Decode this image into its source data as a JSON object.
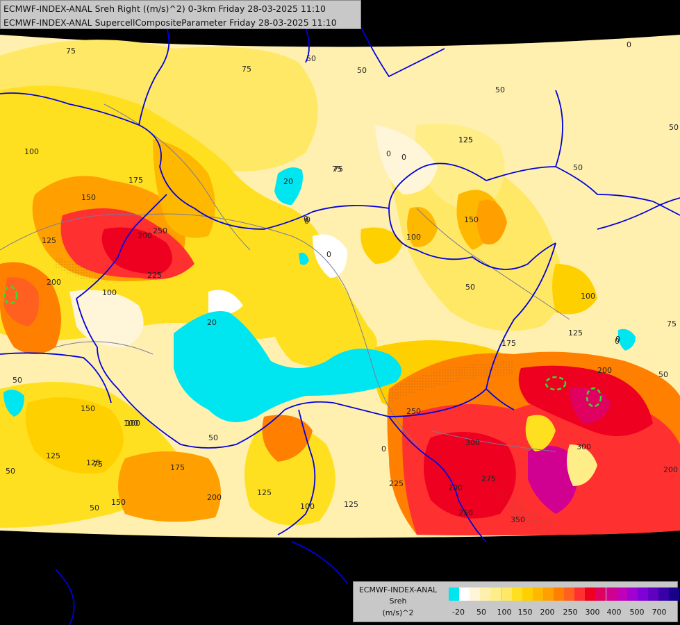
{
  "header": {
    "line1": "ECMWF-INDEX-ANAL Sreh Right ((m/s)^2) 0-3km Friday 28-03-2025 11:10",
    "line2": "ECMWF-INDEX-ANAL SupercellCompositeParameter Friday 28-03-2025 11:10"
  },
  "legend": {
    "line1": "ECMWF-INDEX-ANAL",
    "line2": "Sreh",
    "line3": "(m/s)^2",
    "colors": [
      "#00e6f0",
      "#ffffff",
      "#fff5d8",
      "#fff0b0",
      "#ffee88",
      "#ffe866",
      "#ffe020",
      "#ffd000",
      "#ffb800",
      "#ffa000",
      "#ff8000",
      "#ff6020",
      "#ff3030",
      "#ee0020",
      "#e00060",
      "#d00090",
      "#c000b8",
      "#a000d0",
      "#8000d8",
      "#6000c0",
      "#3800a8",
      "#180088"
    ],
    "ticks": [
      "-20",
      "50",
      "100",
      "150",
      "200",
      "250",
      "300",
      "400",
      "500",
      "700"
    ]
  },
  "map": {
    "contour_labels": [
      "75",
      "75",
      "50",
      "50",
      "50",
      "0",
      "50",
      "75",
      "125",
      "0",
      "100",
      "175",
      "150",
      "200",
      "250",
      "225",
      "125",
      "200",
      "100",
      "50",
      "20",
      "0",
      "0",
      "75",
      "125",
      "20",
      "0",
      "0",
      "150",
      "100",
      "50",
      "50",
      "100",
      "0",
      "75",
      "125",
      "175",
      "200",
      "50",
      "0",
      "250",
      "300",
      "275",
      "250",
      "350",
      "200",
      "300",
      "200",
      "225",
      "125",
      "100",
      "150",
      "200",
      "175",
      "125",
      "100",
      "75",
      "50",
      "150",
      "125",
      "100",
      "50",
      "125",
      "50",
      "50",
      "0",
      "0"
    ]
  },
  "colors": {
    "border": "#0000dd",
    "river": "#7a7a9a",
    "background": "#000000",
    "panel": "#c8c8c8"
  }
}
